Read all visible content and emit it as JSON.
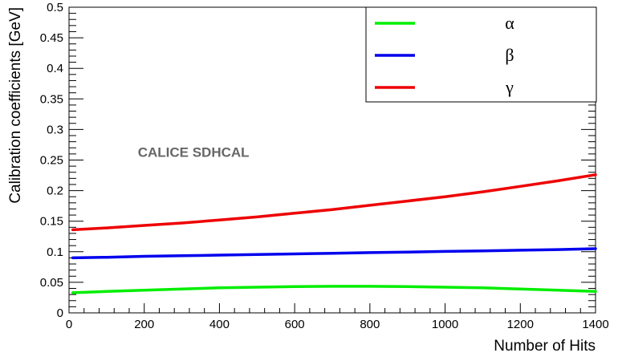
{
  "chart_data": {
    "type": "line",
    "xlabel": "Number of Hits",
    "ylabel": "Calibration coefficients [GeV]",
    "xlim": [
      0,
      1400
    ],
    "ylim": [
      0,
      0.5
    ],
    "x_ticks": [
      0,
      200,
      400,
      600,
      800,
      1000,
      1200,
      1400
    ],
    "y_ticks": [
      0,
      0.05,
      0.1,
      0.15,
      0.2,
      0.25,
      0.3,
      0.35,
      0.4,
      0.45,
      0.5
    ],
    "x_tick_labels": [
      "0",
      "200",
      "400",
      "600",
      "800",
      "1000",
      "1200",
      "1400"
    ],
    "y_tick_labels": [
      "0",
      "0.05",
      "0.1",
      "0.15",
      "0.2",
      "0.25",
      "0.3",
      "0.35",
      "0.4",
      "0.45",
      "0.5"
    ],
    "grid": false,
    "legend_position": "top-right",
    "annotation": {
      "text": "CALICE SDHCAL",
      "color": "#666666",
      "x": 200,
      "y": 0.255
    },
    "series": [
      {
        "name": "α",
        "color": "#00ee00",
        "x": [
          10,
          100,
          200,
          300,
          400,
          500,
          600,
          700,
          800,
          900,
          1000,
          1100,
          1200,
          1300,
          1400
        ],
        "y": [
          0.033,
          0.035,
          0.037,
          0.039,
          0.041,
          0.042,
          0.043,
          0.0435,
          0.0435,
          0.043,
          0.042,
          0.041,
          0.039,
          0.037,
          0.035
        ]
      },
      {
        "name": "β",
        "color": "#0000ee",
        "x": [
          10,
          100,
          200,
          300,
          400,
          500,
          600,
          700,
          800,
          900,
          1000,
          1100,
          1200,
          1300,
          1400
        ],
        "y": [
          0.09,
          0.091,
          0.0925,
          0.0935,
          0.0945,
          0.0955,
          0.0965,
          0.0975,
          0.0985,
          0.0995,
          0.1005,
          0.1015,
          0.1025,
          0.1035,
          0.105
        ]
      },
      {
        "name": "γ",
        "color": "#ee0000",
        "x": [
          10,
          100,
          200,
          300,
          400,
          500,
          600,
          700,
          800,
          900,
          1000,
          1100,
          1200,
          1300,
          1400
        ],
        "y": [
          0.136,
          0.139,
          0.143,
          0.147,
          0.152,
          0.157,
          0.163,
          0.169,
          0.176,
          0.183,
          0.19,
          0.198,
          0.207,
          0.216,
          0.226
        ]
      }
    ]
  }
}
